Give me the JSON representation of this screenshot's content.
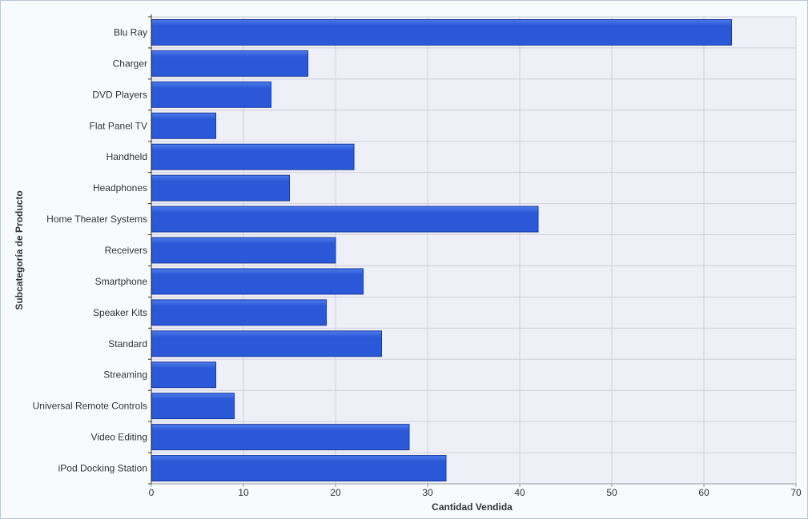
{
  "chart_data": {
    "type": "bar",
    "orientation": "horizontal",
    "title": "",
    "xlabel": "Cantidad Vendida",
    "ylabel": "Subcategoría de Producto",
    "categories": [
      "Blu Ray",
      "Charger",
      "DVD Players",
      "Flat Panel TV",
      "Handheld",
      "Headphones",
      "Home Theater Systems",
      "Receivers",
      "Smartphone",
      "Speaker Kits",
      "Standard",
      "Streaming",
      "Universal Remote Controls",
      "Video Editing",
      "iPod Docking Station"
    ],
    "values": [
      63,
      17,
      13,
      7,
      22,
      15,
      42,
      20,
      23,
      19,
      25,
      7,
      9,
      28,
      32
    ],
    "xlim": [
      0,
      70
    ],
    "xticks": [
      0,
      10,
      20,
      30,
      40,
      50,
      60,
      70
    ],
    "grid": true,
    "legend": "none",
    "colors": {
      "bar": "#2a58d6",
      "bar_top": "#4d7bea",
      "bar_edge": "#1a3a9e",
      "plot_bg": "#eeeff7",
      "grid": "#cfd0dc",
      "axis": "#333333",
      "text": "#333333"
    }
  }
}
